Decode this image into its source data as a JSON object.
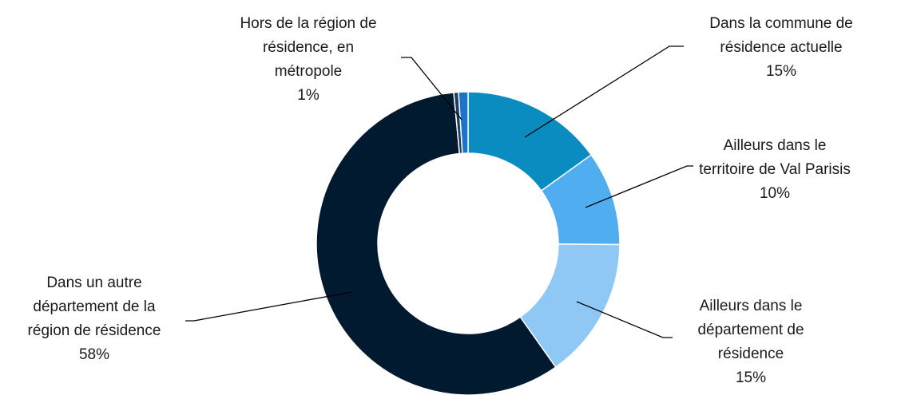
{
  "chart_data": {
    "type": "donut",
    "categories": [
      "Dans la commune de\nrésidence actuelle",
      "Ailleurs dans le\nterritoire de Val Parisis",
      "Ailleurs dans le\ndépartement de\nrésidence",
      "Dans un autre\ndépartement de la\nrégion de résidence",
      null,
      "Hors de la région de\nrésidence, en\nmétropole"
    ],
    "values": [
      15,
      10,
      15,
      58,
      0.5,
      1
    ],
    "value_labels": [
      "15%",
      "10%",
      "15%",
      "58%",
      null,
      "1%"
    ],
    "colors": [
      "#0b8cc1",
      "#50aef0",
      "#8fc8f5",
      "#021a2f",
      "#1a3d63",
      "#1b74c9"
    ]
  }
}
